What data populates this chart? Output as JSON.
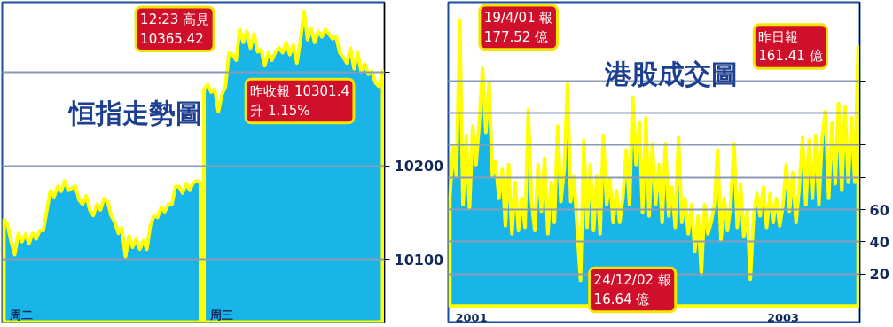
{
  "chart_data": [
    {
      "type": "area",
      "title": "恒指走勢圖",
      "categories": [
        null,
        null,
        null,
        null,
        null,
        null,
        null,
        null,
        null,
        null,
        null,
        null,
        null,
        null,
        null,
        null,
        null,
        null,
        null,
        null,
        null,
        null,
        null,
        null,
        null,
        null,
        null,
        null,
        null,
        null,
        null,
        null,
        null,
        null,
        null,
        null,
        null,
        null,
        null,
        null,
        null,
        null,
        null,
        null,
        null,
        null,
        null,
        null,
        null,
        null,
        null,
        null,
        null,
        null,
        null,
        null,
        null,
        null,
        null,
        null,
        null,
        null,
        null,
        null,
        null,
        null,
        null,
        null,
        null,
        null,
        null,
        null,
        null,
        null,
        null,
        null,
        null,
        null,
        null,
        null,
        null,
        null,
        null,
        null,
        null,
        null,
        null,
        null,
        null,
        null,
        null,
        null,
        null,
        null,
        null,
        null,
        null,
        null,
        null,
        null,
        null,
        null,
        null,
        null,
        null,
        null,
        null
      ],
      "ylim": [
        10033,
        10375
      ],
      "yticks": [
        10100,
        10200,
        {
          "value": 10300,
          "label": null
        }
      ],
      "grid": "y",
      "series": [
        {
          "color": "#19b4e8",
          "values": [
            10143,
            10137,
            10119,
            10105,
            10128,
            10119,
            10127,
            10117,
            10128,
            10122,
            10131,
            10131,
            10153,
            10174,
            10167,
            10178,
            10173,
            10184,
            10174,
            10176,
            10178,
            10164,
            10159,
            10168,
            10153,
            10147,
            10159,
            10153,
            10165,
            10162,
            10147,
            10140,
            10128,
            10134,
            10103,
            10125,
            10113,
            10122,
            10111,
            10120,
            10111,
            10137,
            10147,
            10145,
            10156,
            10151,
            10159,
            10159,
            10178,
            10178,
            10171,
            10181,
            10174,
            10182,
            10184,
            10182,
            null,
            null,
            null,
            null,
            null,
            null,
            null,
            null,
            null,
            null,
            null,
            null,
            null,
            null,
            null,
            null,
            null,
            null,
            null,
            null,
            null,
            null,
            null,
            null,
            null,
            null,
            null,
            null,
            null,
            null,
            null,
            null,
            null,
            null,
            null,
            null,
            null,
            null,
            null,
            null,
            null,
            null,
            null,
            null,
            null,
            null,
            null,
            null,
            null,
            null,
            null
          ]
        },
        {
          "color": "#19b4e8",
          "values": [
            null,
            null,
            null,
            null,
            null,
            null,
            null,
            null,
            null,
            null,
            null,
            null,
            null,
            null,
            null,
            null,
            null,
            null,
            null,
            null,
            null,
            null,
            null,
            null,
            null,
            null,
            null,
            null,
            null,
            null,
            null,
            null,
            null,
            null,
            null,
            null,
            null,
            null,
            null,
            null,
            null,
            null,
            null,
            null,
            null,
            null,
            null,
            null,
            null,
            null,
            null,
            null,
            null,
            null,
            null,
            null,
            10282,
            10287,
            10279,
            10282,
            10258,
            10276,
            10285,
            10321,
            10319,
            10313,
            10346,
            10332,
            10344,
            10326,
            10341,
            10322,
            10324,
            10307,
            10321,
            10313,
            10322,
            10326,
            10321,
            10332,
            10319,
            10329,
            10310,
            10335,
            10365.42,
            10335,
            10347,
            10332,
            10344,
            10338,
            10346,
            10341,
            10336,
            10338,
            10321,
            10316,
            10310,
            10326,
            10304,
            10321,
            10301,
            10309,
            10298,
            10301,
            10289,
            10285,
            10301.4
          ]
        }
      ],
      "annotations": [
        "周二",
        "周三",
        "12:23 高見\n10365.42",
        "昨收報 10301.4\n升 1.15%"
      ]
    },
    {
      "type": "area",
      "title": "港股成交圖",
      "categories": [
        null,
        null,
        null,
        null,
        null,
        null,
        null,
        null,
        null,
        null,
        null,
        null,
        null,
        null,
        null,
        null,
        null,
        null,
        null,
        null,
        null,
        null,
        null,
        null,
        null,
        null,
        null,
        null,
        null,
        null,
        null,
        null,
        null,
        null,
        null,
        null,
        null,
        null,
        null,
        null,
        null,
        null,
        null,
        null,
        null,
        null,
        null,
        null,
        null,
        null,
        null,
        null,
        null,
        null,
        null,
        null,
        null,
        null,
        null,
        null,
        null,
        null,
        null,
        null,
        null,
        null,
        null,
        null,
        null,
        null,
        null,
        null,
        null,
        null,
        null,
        null,
        null,
        null,
        null,
        null,
        null,
        null,
        null,
        null,
        null,
        null,
        null,
        null,
        null,
        null,
        null,
        null,
        null,
        null,
        null,
        null,
        null,
        null,
        null,
        null,
        null,
        null,
        null,
        null,
        null,
        null,
        null,
        null,
        null,
        null,
        null,
        null,
        null,
        null,
        null,
        null,
        null,
        null,
        null,
        null,
        null,
        null,
        null,
        null,
        null,
        null
      ],
      "ylim": [
        -10,
        189
      ],
      "yticks": [
        20,
        40,
        60,
        {
          "value": 80,
          "label": null
        },
        {
          "value": 100,
          "label": null
        },
        {
          "value": 120,
          "label": null
        },
        {
          "value": 140,
          "label": null
        }
      ],
      "grid": "y",
      "series": [
        {
          "color": "#19b4e8",
          "values": [
            68,
            99,
            81,
            177.52,
            63,
            106,
            61,
            112,
            88,
            114,
            148,
            108,
            139,
            81,
            90,
            67,
            85,
            50,
            88,
            45,
            77,
            47,
            67,
            49,
            122,
            65,
            47,
            88,
            59,
            92,
            45,
            77,
            52,
            112,
            65,
            85,
            138,
            65,
            81,
            47,
            16,
            103,
            49,
            88,
            47,
            81,
            45,
            106,
            63,
            79,
            52,
            72,
            52,
            68,
            97,
            63,
            130,
            88,
            114,
            58,
            117,
            56,
            101,
            63,
            88,
            52,
            101,
            56,
            74,
            49,
            105,
            52,
            67,
            45,
            63,
            34,
            56,
            20,
            63,
            45,
            52,
            63,
            97,
            41,
            67,
            47,
            63,
            101,
            49,
            76,
            43,
            59,
            16.64,
            56,
            70,
            56,
            74,
            49,
            70,
            52,
            67,
            50,
            63,
            88,
            59,
            83,
            52,
            74,
            105,
            63,
            103,
            67,
            106,
            63,
            105,
            121,
            67,
            114,
            76,
            126,
            72,
            124,
            77,
            117,
            77,
            161.41
          ]
        }
      ],
      "annotations": [
        "2001",
        "2003",
        "19/4/01 報\n177.52 億",
        "24/12/02 報\n16.64 億",
        "昨日報\n161.41 億"
      ]
    }
  ]
}
